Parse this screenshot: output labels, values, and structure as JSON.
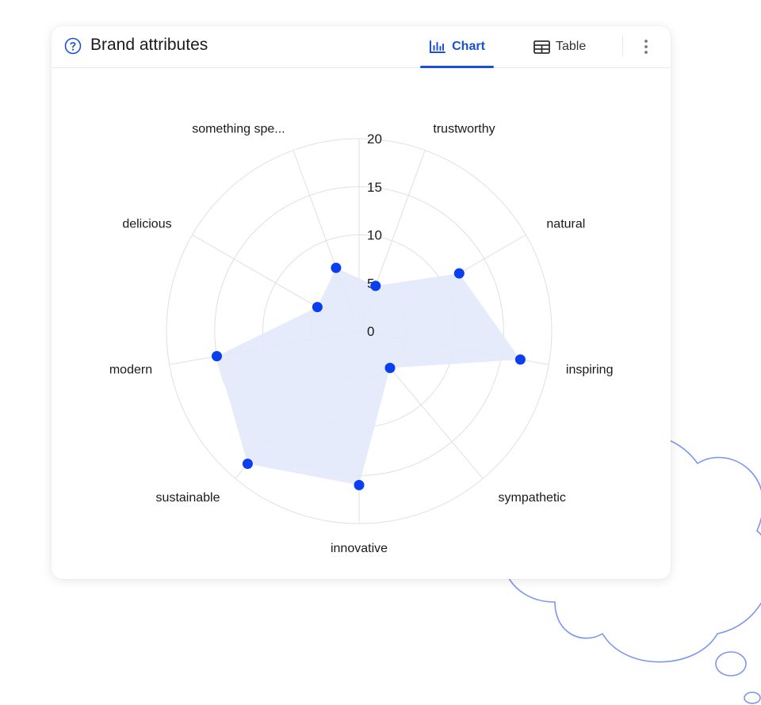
{
  "card": {
    "title": "Brand attributes",
    "icons": {
      "help": "question-circle-icon",
      "chart_tab": "bar-chart-icon",
      "table_tab": "table-icon",
      "more": "more-vertical-icon"
    },
    "tabs": [
      {
        "label": "Chart",
        "active": true
      },
      {
        "label": "Table",
        "active": false
      }
    ]
  },
  "colors": {
    "accent": "#1a4fd6",
    "point": "#0a3ff0",
    "area_fill": "#e3e9fb",
    "grid": "#e0e0e4",
    "cloud_stroke": "#7b96ee"
  },
  "chart_data": {
    "type": "radar",
    "categories": [
      "trustworthy",
      "natural",
      "inspiring",
      "sympathetic",
      "innovative",
      "sustainable",
      "modern",
      "delicious",
      "something spe..."
    ],
    "values": [
      5,
      12,
      17,
      5,
      16,
      18,
      15,
      5,
      7
    ],
    "rlim": [
      0,
      20
    ],
    "rticks": [
      0,
      5,
      10,
      15,
      20
    ],
    "grid": true,
    "legend": "none"
  }
}
